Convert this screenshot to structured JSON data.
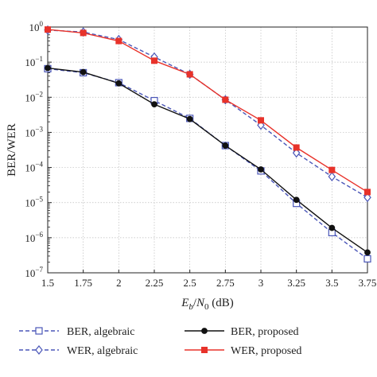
{
  "chart_data": {
    "type": "line",
    "xlabel_main": "E",
    "xlabel_sub": "b",
    "xlabel_slash": "/",
    "xlabel_n": "N",
    "xlabel_n_sub": "0",
    "xlabel_unit": " (dB)",
    "ylabel": "BER/WER",
    "yscale": "log",
    "xlim": [
      1.5,
      3.75
    ],
    "ylim": [
      1e-07,
      1
    ],
    "grid": true,
    "legend_position": "bottom",
    "x": [
      1.5,
      1.75,
      2,
      2.25,
      2.5,
      2.75,
      3,
      3.25,
      3.5,
      3.75
    ],
    "x_tick_labels": [
      "1.5",
      "1.75",
      "2",
      "2.25",
      "2.5",
      "2.75",
      "3",
      "3.25",
      "3.5",
      "3.75"
    ],
    "y_ticks": [
      {
        "mant": "10",
        "exp": "0",
        "value": 1
      },
      {
        "mant": "10",
        "exp": "−1",
        "value": 0.1
      },
      {
        "mant": "10",
        "exp": "−2",
        "value": 0.01
      },
      {
        "mant": "10",
        "exp": "−3",
        "value": 0.001
      },
      {
        "mant": "10",
        "exp": "−4",
        "value": 0.0001
      },
      {
        "mant": "10",
        "exp": "−5",
        "value": 1e-05
      },
      {
        "mant": "10",
        "exp": "−6",
        "value": 1e-06
      },
      {
        "mant": "10",
        "exp": "−7",
        "value": 1e-07
      }
    ],
    "series": [
      {
        "name": "BER, algebraic",
        "color": "#4a56b8",
        "dash": true,
        "marker": "square-open",
        "values": [
          0.065,
          0.05,
          0.026,
          0.008,
          0.0025,
          0.00042,
          8e-05,
          9.5e-06,
          1.4e-06,
          2.5e-07
        ]
      },
      {
        "name": "WER, algebraic",
        "color": "#4a56b8",
        "dash": true,
        "marker": "diamond-open",
        "values": [
          0.82,
          0.72,
          0.44,
          0.14,
          0.045,
          0.0085,
          0.0016,
          0.00026,
          5.5e-05,
          1.4e-05
        ]
      },
      {
        "name": "BER, proposed",
        "color": "#111111",
        "dash": false,
        "marker": "circle-filled",
        "values": [
          0.068,
          0.052,
          0.025,
          0.0063,
          0.0024,
          0.00042,
          8.8e-05,
          1.2e-05,
          1.9e-06,
          3.8e-07
        ]
      },
      {
        "name": "WER, proposed",
        "color": "#e8322a",
        "dash": false,
        "marker": "square-filled",
        "values": [
          0.85,
          0.68,
          0.4,
          0.11,
          0.045,
          0.0085,
          0.0022,
          0.00037,
          8.5e-05,
          2e-05
        ]
      }
    ]
  }
}
